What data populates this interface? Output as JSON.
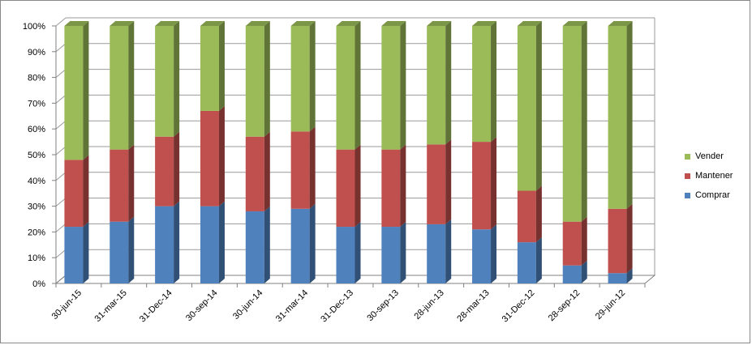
{
  "chart_data": {
    "type": "bar",
    "stacked": true,
    "percent": true,
    "categories": [
      "30-jun-15",
      "31-mar-15",
      "31-Dec-14",
      "30-sep-14",
      "30-jun-14",
      "31-mar-14",
      "31-Dec-13",
      "30-sep-13",
      "28-jun-13",
      "28-mar-13",
      "31-Dec-12",
      "28-sep-12",
      "29-jun-12"
    ],
    "series": [
      {
        "name": "Comprar",
        "color": "#4F81BD",
        "values": [
          22,
          24,
          30,
          30,
          28,
          29,
          22,
          22,
          23,
          21,
          16,
          7,
          4
        ]
      },
      {
        "name": "Mantener",
        "color": "#C0504D",
        "values": [
          26,
          28,
          27,
          37,
          29,
          30,
          30,
          30,
          31,
          34,
          20,
          17,
          25
        ]
      },
      {
        "name": "Vender",
        "color": "#9BBB59",
        "values": [
          52,
          48,
          43,
          33,
          43,
          41,
          48,
          48,
          46,
          45,
          64,
          76,
          71
        ]
      }
    ],
    "ylim": [
      0,
      100
    ],
    "yticks": [
      "0%",
      "10%",
      "20%",
      "30%",
      "40%",
      "50%",
      "60%",
      "70%",
      "80%",
      "90%",
      "100%"
    ],
    "grid": true,
    "legend_position": "right"
  },
  "legend": {
    "items": [
      {
        "label": "Vender",
        "color": "#9BBB59"
      },
      {
        "label": "Mantener",
        "color": "#C0504D"
      },
      {
        "label": "Comprar",
        "color": "#4F81BD"
      }
    ]
  }
}
